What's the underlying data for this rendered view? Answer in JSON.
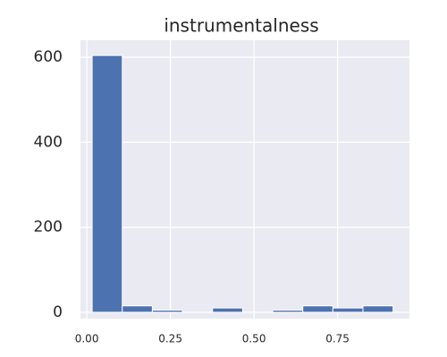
{
  "chart_data": {
    "type": "histogram",
    "title": "instrumentalness",
    "bins": [
      0.016,
      0.106,
      0.196,
      0.286,
      0.376,
      0.466,
      0.556,
      0.646,
      0.736,
      0.826,
      0.916
    ],
    "values": [
      604,
      15,
      5,
      0,
      10,
      0,
      5,
      15,
      10,
      15
    ],
    "color": "#4c72b0",
    "background": "#eaeaf2",
    "grid": true,
    "xlim": [
      -0.019,
      0.965
    ],
    "ylim": [
      -15,
      640
    ],
    "xticks": [
      {
        "value": 0,
        "label": "0.00"
      },
      {
        "value": 0.25,
        "label": "0.25"
      },
      {
        "value": 0.5,
        "label": "0.50"
      },
      {
        "value": 0.75,
        "label": "0.75"
      }
    ],
    "yticks": [
      0,
      200,
      400,
      600
    ]
  }
}
